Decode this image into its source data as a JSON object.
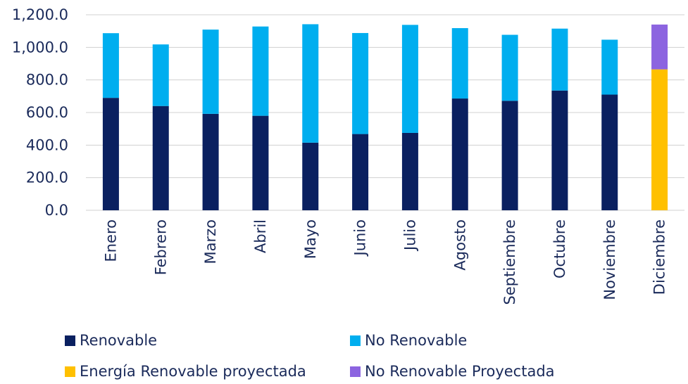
{
  "chart_data": {
    "type": "bar",
    "stacked": true,
    "categories": [
      "Enero",
      "Febrero",
      "Marzo",
      "Abril",
      "Mayo",
      "Junio",
      "Julio",
      "Agosto",
      "Septiembre",
      "Octubre",
      "Noviembre",
      "Diciembre"
    ],
    "series": [
      {
        "name": "Renovable",
        "color": "#0a2060",
        "values": [
          690,
          640,
          592,
          580,
          415,
          468,
          475,
          686,
          672,
          735,
          710,
          0
        ]
      },
      {
        "name": "No Renovable",
        "color": "#00aeef",
        "values": [
          397,
          378,
          517,
          548,
          727,
          620,
          663,
          432,
          405,
          380,
          337,
          0
        ]
      },
      {
        "name": "Energía Renovable proyectada",
        "color": "#ffc000",
        "values": [
          0,
          0,
          0,
          0,
          0,
          0,
          0,
          0,
          0,
          0,
          0,
          865
        ]
      },
      {
        "name": "No Renovable Proyectada",
        "color": "#8c64e0",
        "values": [
          0,
          0,
          0,
          0,
          0,
          0,
          0,
          0,
          0,
          0,
          0,
          275
        ]
      }
    ],
    "ylim": [
      0,
      1200
    ],
    "yticks": [
      "0.0",
      "200.0",
      "400.0",
      "600.0",
      "800.0",
      "1,000.0",
      "1,200.0"
    ],
    "ytick_values": [
      0,
      200,
      400,
      600,
      800,
      1000,
      1200
    ],
    "grid": true,
    "legend_position": "bottom",
    "title": "",
    "xlabel": "",
    "ylabel": ""
  }
}
